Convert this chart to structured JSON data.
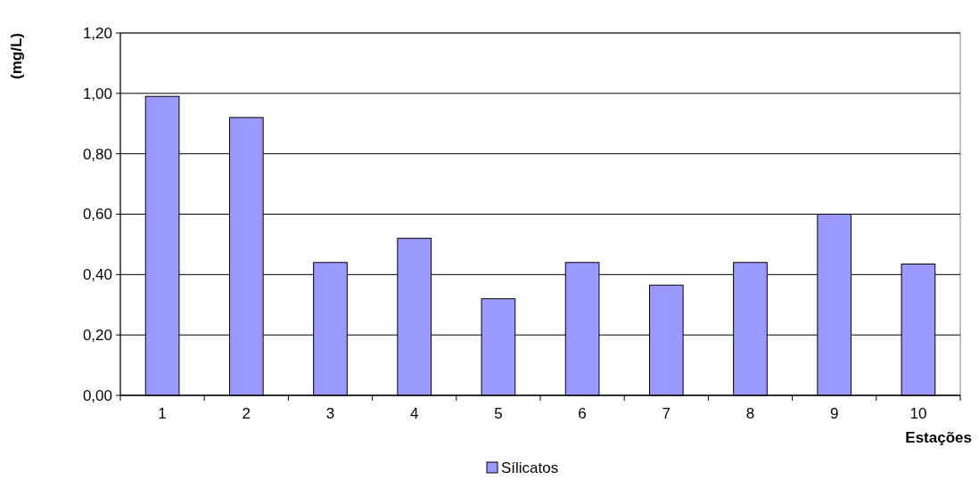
{
  "chart_data": {
    "type": "bar",
    "ylabel": "(mg/L)",
    "xlabel": "Estações",
    "categories": [
      "1",
      "2",
      "3",
      "4",
      "5",
      "6",
      "7",
      "8",
      "9",
      "10"
    ],
    "series": [
      {
        "name": "Sílicatos",
        "color": "#9999ff",
        "values": [
          0.99,
          0.92,
          0.44,
          0.52,
          0.32,
          0.44,
          0.365,
          0.44,
          0.6,
          0.435
        ]
      }
    ],
    "ylim": [
      0,
      1.2
    ],
    "yticks": [
      {
        "value": 0,
        "label": "0,00"
      },
      {
        "value": 0.2,
        "label": "0,20"
      },
      {
        "value": 0.4,
        "label": "0,40"
      },
      {
        "value": 0.6,
        "label": "0,60"
      },
      {
        "value": 0.8,
        "label": "0,80"
      },
      {
        "value": 1,
        "label": "1,00"
      },
      {
        "value": 1.2,
        "label": "1,20"
      }
    ],
    "grid": "y",
    "legend": "bottom"
  }
}
